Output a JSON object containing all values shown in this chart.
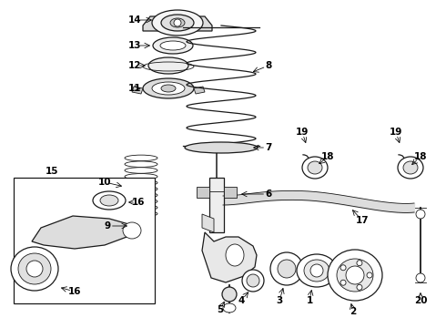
{
  "bg_color": "#ffffff",
  "line_color": "#1a1a1a",
  "figsize": [
    4.9,
    3.6
  ],
  "dpi": 100,
  "label_fontsize": 7.5,
  "component_color": "#e8e8e8",
  "spring_color": "#cccccc"
}
